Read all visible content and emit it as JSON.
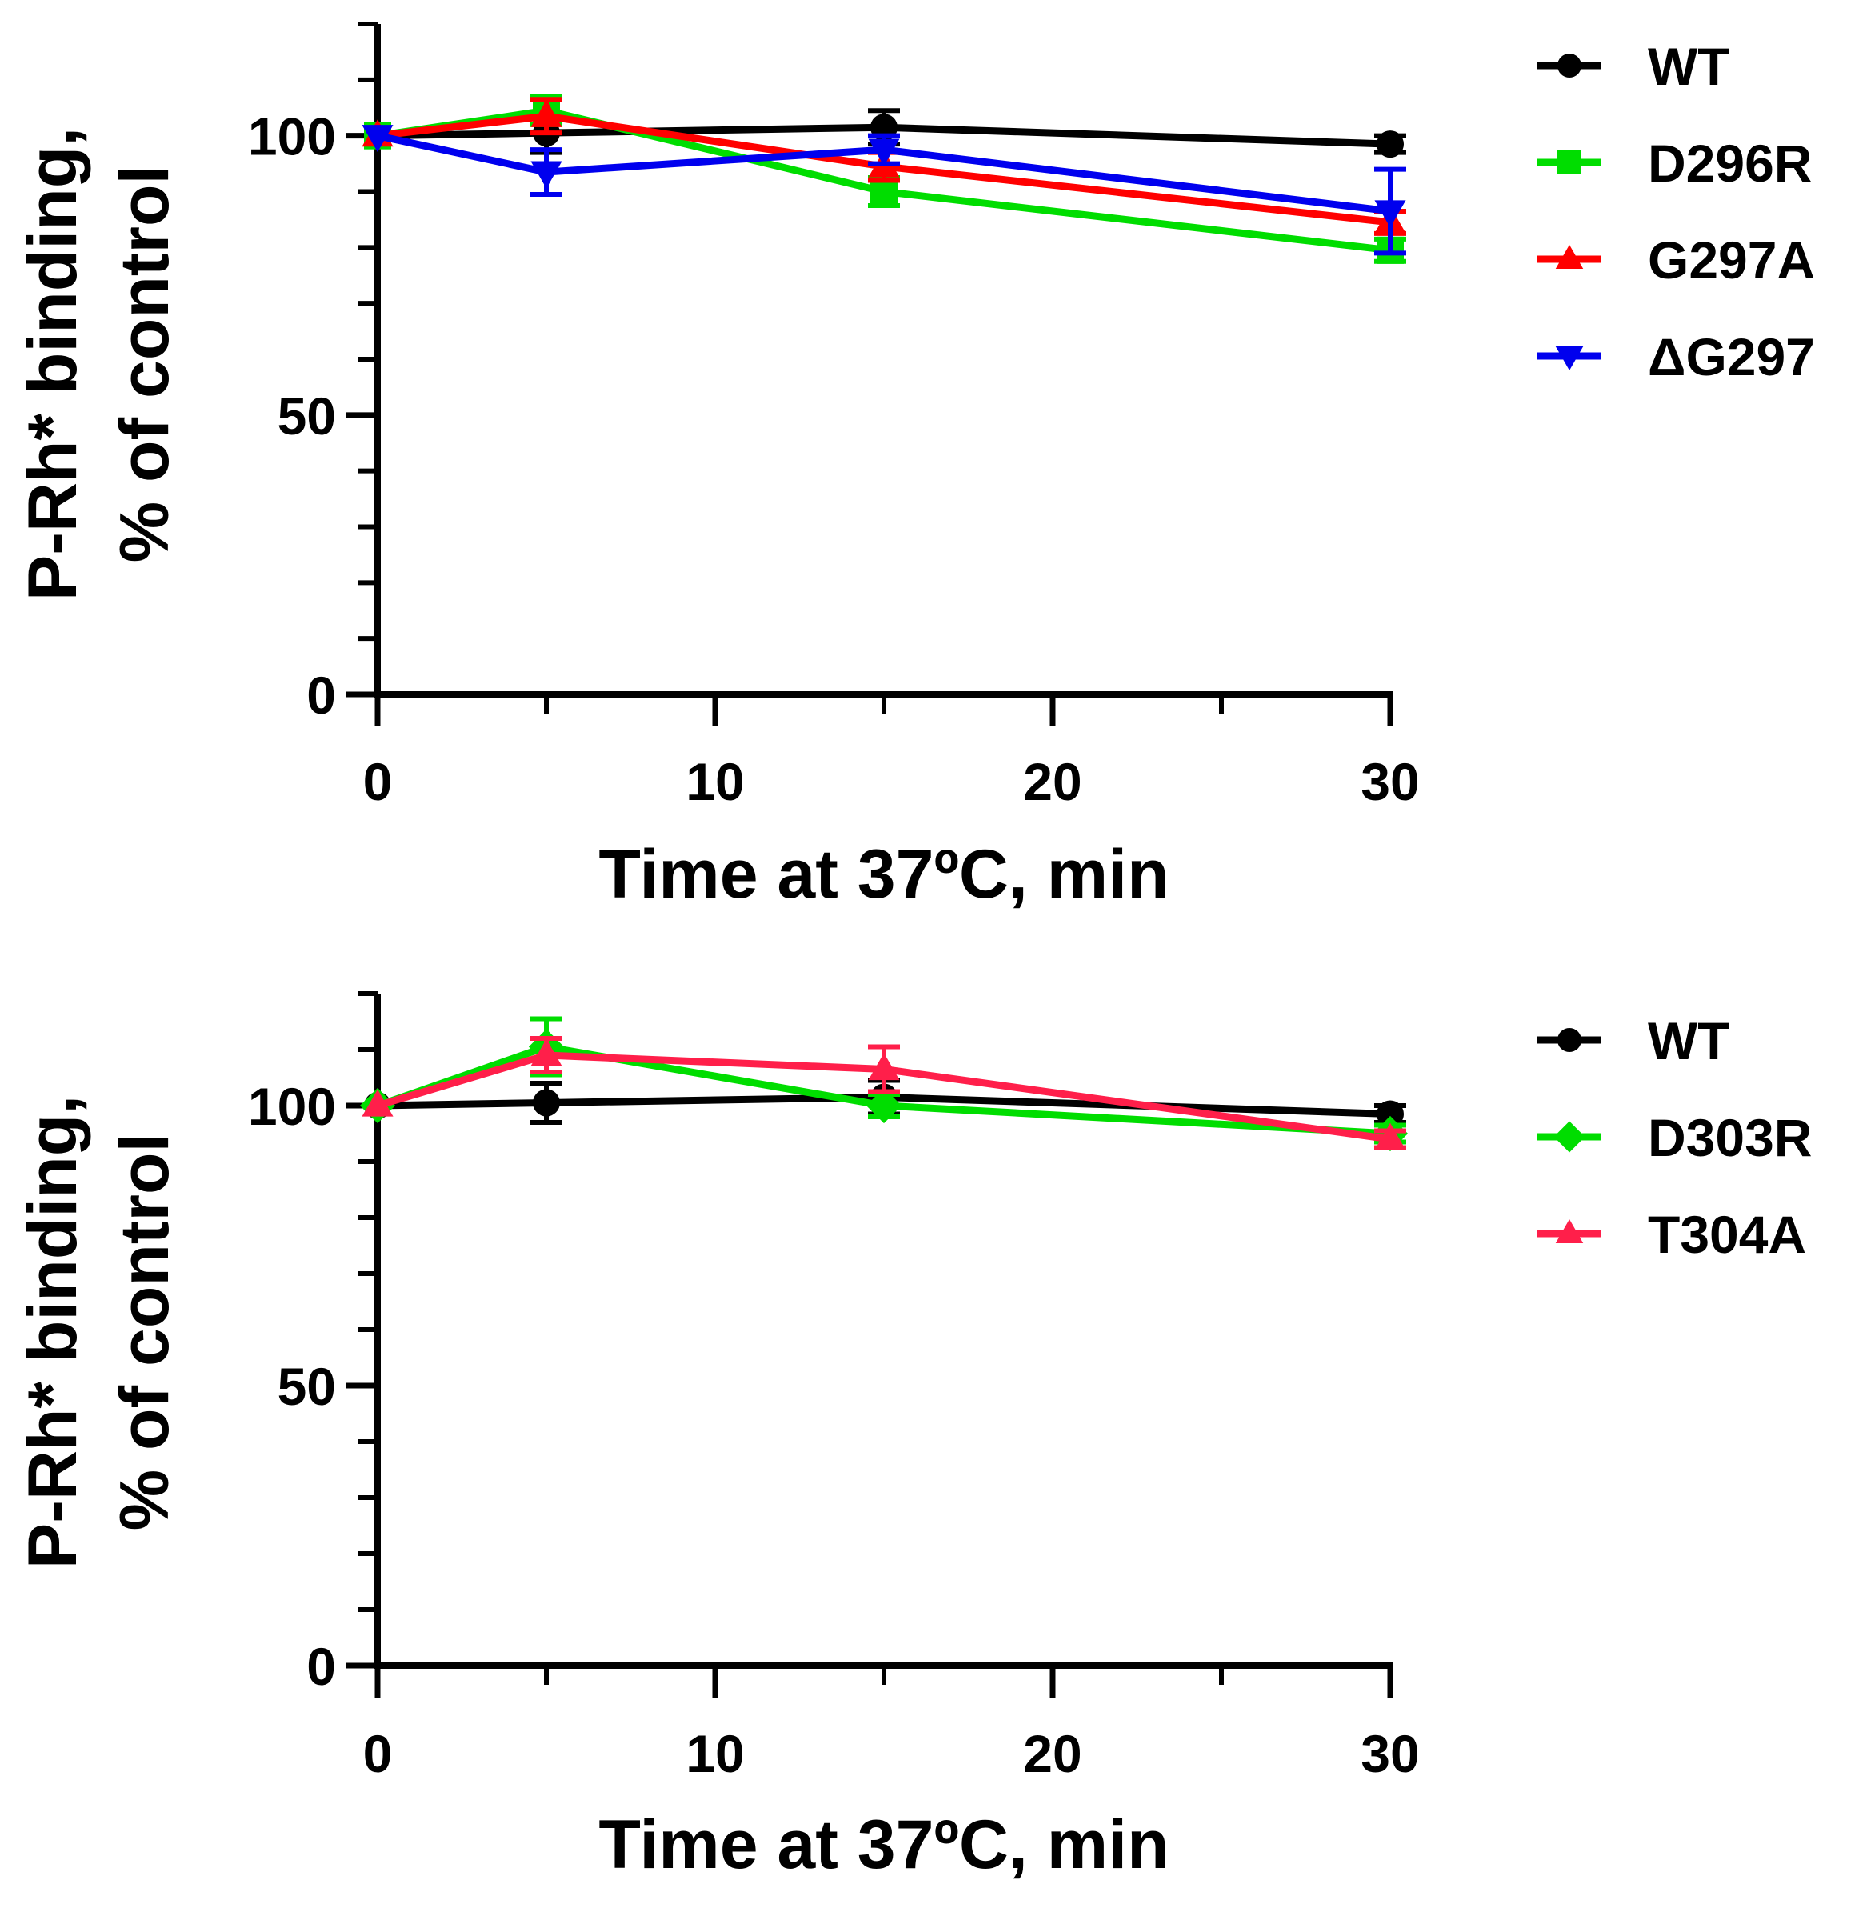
{
  "chart_data": [
    {
      "type": "line",
      "xlabel": "Time at 37ºC, min",
      "ylabel": [
        "P-Rh* binding,",
        "% of control"
      ],
      "xlim": [
        0,
        30
      ],
      "ylim": [
        0,
        120
      ],
      "x_ticks": [
        0,
        10,
        20,
        30
      ],
      "x_minor_ticks": [
        5,
        15,
        25
      ],
      "y_ticks": [
        0,
        50,
        100
      ],
      "y_minor_ticks": [
        10,
        20,
        30,
        40,
        60,
        70,
        80,
        90,
        110,
        120
      ],
      "x": [
        0,
        5,
        15,
        30
      ],
      "legend_position": "right",
      "series": [
        {
          "name": "WT",
          "color": "#000000",
          "marker": "circle",
          "values": [
            100,
            100.5,
            101.5,
            98.5
          ],
          "errors": [
            0,
            3.5,
            3,
            1.5
          ]
        },
        {
          "name": "D296R",
          "color": "#00dd00",
          "marker": "square",
          "values": [
            100,
            104.5,
            90,
            79.5
          ],
          "errors": [
            0,
            2.5,
            2.5,
            2
          ]
        },
        {
          "name": "G297A",
          "color": "#ff0000",
          "marker": "triangle-up",
          "values": [
            100,
            103.5,
            94.5,
            84.5
          ],
          "errors": [
            0,
            3,
            2.5,
            2
          ]
        },
        {
          "name": "ΔG297",
          "color": "#0000ee",
          "marker": "triangle-down",
          "values": [
            100,
            93.5,
            97.5,
            86.5
          ],
          "errors": [
            0,
            4,
            2.5,
            7.5
          ]
        }
      ]
    },
    {
      "type": "line",
      "xlabel": "Time at 37ºC, min",
      "ylabel": [
        "P-Rh* binding,",
        "% of control"
      ],
      "xlim": [
        0,
        30
      ],
      "ylim": [
        0,
        120
      ],
      "x_ticks": [
        0,
        10,
        20,
        30
      ],
      "x_minor_ticks": [
        5,
        15,
        25
      ],
      "y_ticks": [
        0,
        50,
        100
      ],
      "y_minor_ticks": [
        10,
        20,
        30,
        40,
        60,
        70,
        80,
        90,
        110,
        120
      ],
      "x": [
        0,
        5,
        15,
        30
      ],
      "legend_position": "right",
      "series": [
        {
          "name": "WT",
          "color": "#000000",
          "marker": "circle",
          "values": [
            100,
            100.5,
            101.5,
            98.5
          ],
          "errors": [
            0,
            3.5,
            3,
            1.5
          ]
        },
        {
          "name": "D303R",
          "color": "#00dd00",
          "marker": "diamond",
          "values": [
            100,
            110.5,
            100,
            95
          ],
          "errors": [
            0,
            5,
            2,
            1.5
          ]
        },
        {
          "name": "T304A",
          "color": "#ff1f4a",
          "marker": "triangle-up",
          "values": [
            100,
            109,
            106.5,
            94
          ],
          "errors": [
            0,
            3,
            4,
            1.5
          ]
        }
      ]
    }
  ]
}
